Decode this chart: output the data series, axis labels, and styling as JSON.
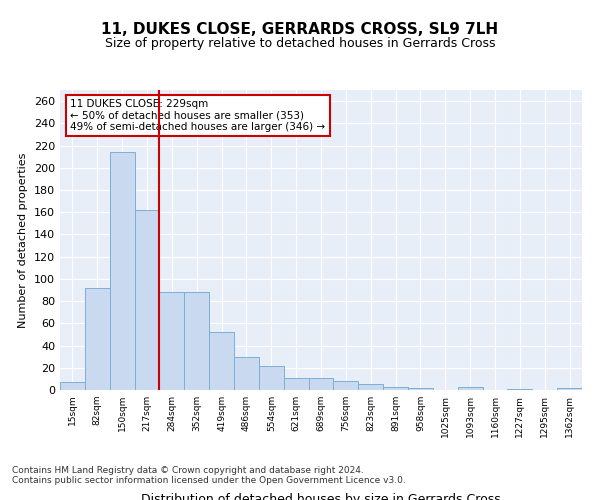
{
  "title1": "11, DUKES CLOSE, GERRARDS CROSS, SL9 7LH",
  "title2": "Size of property relative to detached houses in Gerrards Cross",
  "xlabel": "Distribution of detached houses by size in Gerrards Cross",
  "ylabel": "Number of detached properties",
  "categories": [
    "15sqm",
    "82sqm",
    "150sqm",
    "217sqm",
    "284sqm",
    "352sqm",
    "419sqm",
    "486sqm",
    "554sqm",
    "621sqm",
    "689sqm",
    "756sqm",
    "823sqm",
    "891sqm",
    "958sqm",
    "1025sqm",
    "1093sqm",
    "1160sqm",
    "1227sqm",
    "1295sqm",
    "1362sqm"
  ],
  "values": [
    7,
    92,
    214,
    162,
    88,
    88,
    52,
    30,
    22,
    11,
    11,
    8,
    5,
    3,
    2,
    0,
    3,
    0,
    1,
    0,
    2
  ],
  "bar_color": "#c8d9f0",
  "bar_edge_color": "#7bafd4",
  "vline_x": 3,
  "vline_color": "#cc0000",
  "annotation_text": "11 DUKES CLOSE: 229sqm\n← 50% of detached houses are smaller (353)\n49% of semi-detached houses are larger (346) →",
  "annotation_box_color": "#ffffff",
  "annotation_box_edge": "#cc0000",
  "footnote": "Contains HM Land Registry data © Crown copyright and database right 2024.\nContains public sector information licensed under the Open Government Licence v3.0.",
  "ylim": [
    0,
    270
  ],
  "yticks": [
    0,
    20,
    40,
    60,
    80,
    100,
    120,
    140,
    160,
    180,
    200,
    220,
    240,
    260
  ],
  "bg_color": "#e8eef8",
  "fig_bg": "#ffffff"
}
